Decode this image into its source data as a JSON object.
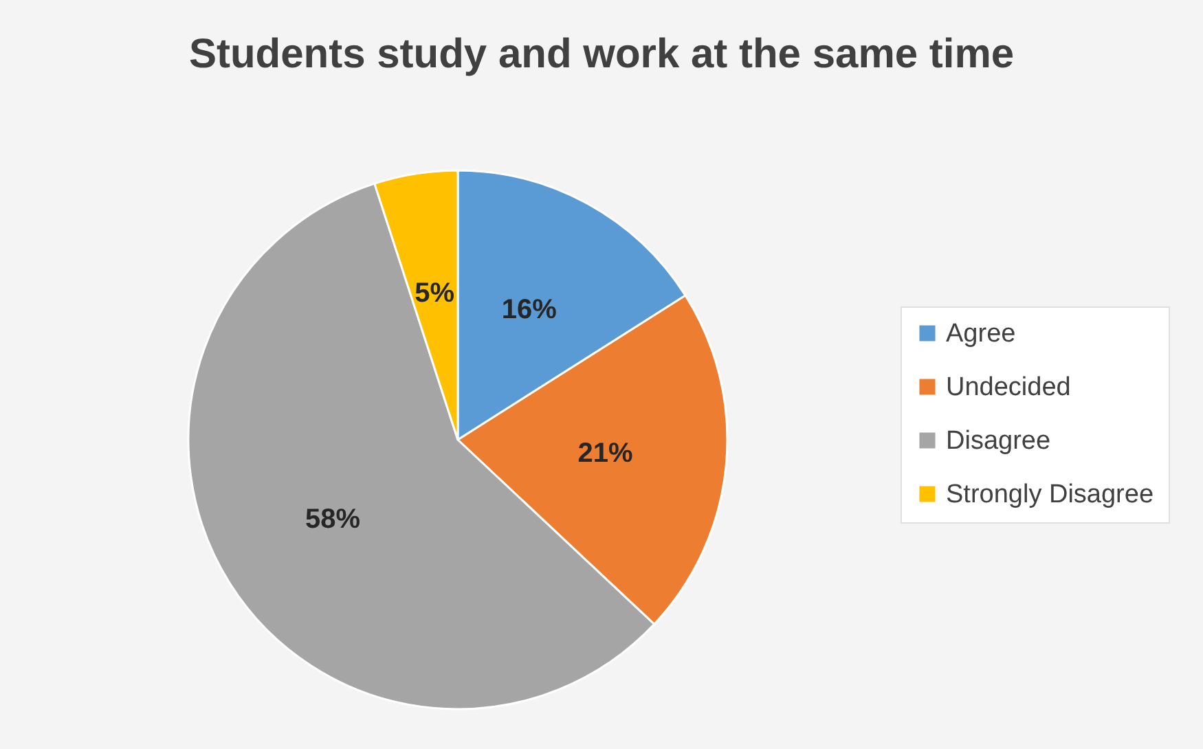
{
  "chart_data": {
    "type": "pie",
    "title": "Students study and work at the same time",
    "categories": [
      "Agree",
      "Undecided",
      "Disagree",
      "Strongly Disagree"
    ],
    "values": [
      16,
      21,
      58,
      5
    ],
    "colors": [
      "#5b9bd5",
      "#ed7d31",
      "#a5a5a5",
      "#ffc000"
    ],
    "value_labels": [
      "16%",
      "21%",
      "58%",
      "5%"
    ],
    "legend": "right"
  }
}
